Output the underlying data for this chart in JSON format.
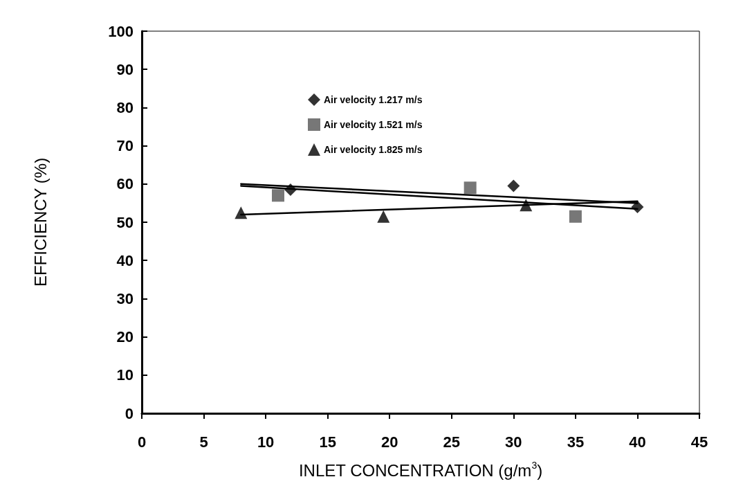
{
  "chart_data": {
    "type": "scatter",
    "xlabel": "INLET CONCENTRATION (g/m$^{3}$)",
    "ylabel": "EFFICIENCY (%)",
    "xlim": [
      0,
      45
    ],
    "xticks": [
      0,
      5,
      10,
      15,
      20,
      25,
      30,
      35,
      40,
      45
    ],
    "ylim": [
      0,
      100
    ],
    "yticks": [
      0,
      10,
      20,
      30,
      40,
      50,
      60,
      70,
      80,
      90,
      100
    ],
    "grid": false,
    "legend": "top",
    "series": [
      {
        "name": "Air velocity 1.217 m/s",
        "color": "#000000",
        "marker": "diamond",
        "x": [
          12,
          30,
          40
        ],
        "values": [
          58.5,
          59.5,
          54
        ]
      },
      {
        "name": "Air velocity 1.521 m/s",
        "color": "#555555",
        "marker": "square",
        "x": [
          11,
          26.5,
          35
        ],
        "values": [
          57,
          59,
          51.5
        ]
      },
      {
        "name": "Air velocity 1.825 m/s",
        "color": "#000000",
        "marker": "triangle",
        "x": [
          8,
          19.5,
          31
        ],
        "values": [
          52.5,
          51.5,
          54.5
        ]
      },
      {
        "type": "line",
        "color": "#000000",
        "marker": "none",
        "x": [
          8,
          40
        ],
        "values": [
          60,
          55
        ]
      },
      {
        "type": "line",
        "color": "#000000",
        "marker": "none",
        "x": [
          8,
          40
        ],
        "values": [
          59.5,
          53.5
        ]
      },
      {
        "type": "line",
        "color": "#000000",
        "marker": "none",
        "x": [
          8,
          40
        ],
        "values": [
          52,
          55.5
        ]
      }
    ]
  }
}
